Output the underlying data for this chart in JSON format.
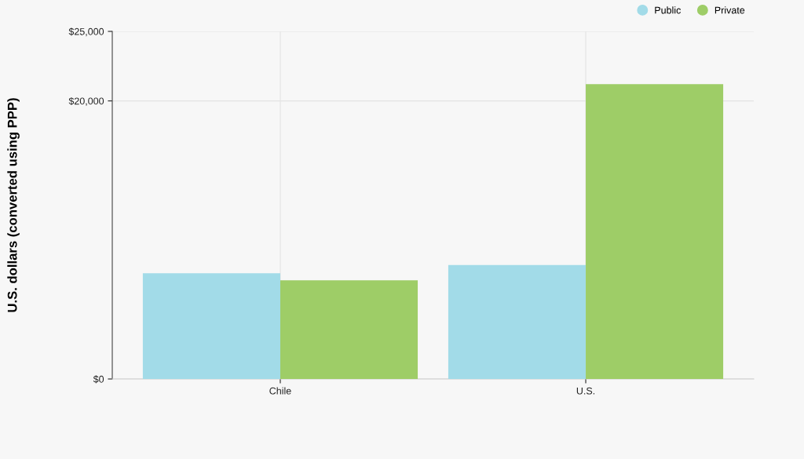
{
  "chart_data": {
    "type": "bar",
    "ylabel": "U.S. dollars (converted using PPP)",
    "categories": [
      "Chile",
      "U.S."
    ],
    "series": [
      {
        "name": "Public",
        "color": "#a2dbe8",
        "values": [
          7600,
          8200
        ]
      },
      {
        "name": "Private",
        "color": "#9ecd67",
        "values": [
          7100,
          21200
        ]
      }
    ],
    "ylim": [
      0,
      25000
    ],
    "yticks": [
      {
        "value": 0,
        "label": "$0"
      },
      {
        "value": 20000,
        "label": "$20,000"
      },
      {
        "value": 25000,
        "label": "$25,000"
      }
    ],
    "grid": true,
    "legend": "top right"
  }
}
